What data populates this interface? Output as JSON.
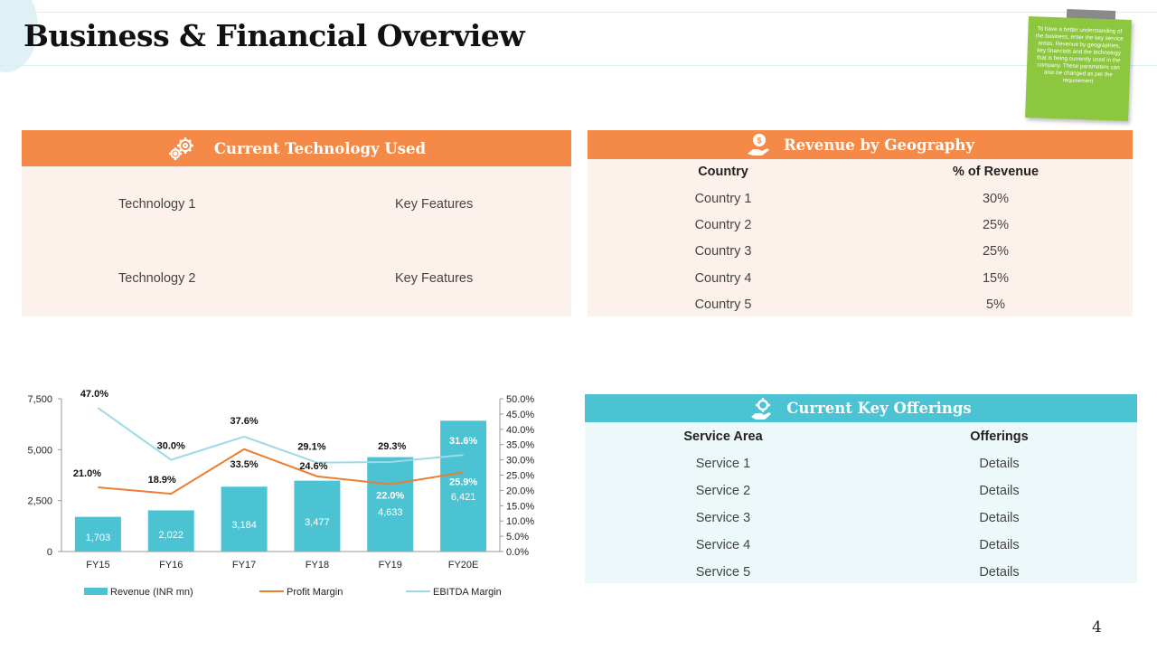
{
  "title": "Business & Financial Overview",
  "note": "To have a better understanding of the business, enter the key service areas, Revenue by geographies, key financials and the technology that is being currently used in the company. These parameters can also be changed as per the requirement",
  "tech": {
    "header": "Current Technology Used",
    "rows": [
      {
        "name": "Technology 1",
        "features": "Key Features"
      },
      {
        "name": "Technology 2",
        "features": "Key Features"
      }
    ]
  },
  "geo": {
    "header": "Revenue by Geography",
    "columns": [
      "Country",
      "% of Revenue"
    ],
    "rows": [
      {
        "country": "Country 1",
        "pct": "30%"
      },
      {
        "country": "Country 2",
        "pct": "25%"
      },
      {
        "country": "Country 3",
        "pct": "25%"
      },
      {
        "country": "Country 4",
        "pct": "15%"
      },
      {
        "country": "Country 5",
        "pct": "5%"
      }
    ]
  },
  "offerings": {
    "header": "Current Key Offerings",
    "columns": [
      "Service Area",
      "Offerings"
    ],
    "rows": [
      {
        "service": "Service 1",
        "offering": "Details"
      },
      {
        "service": "Service 2",
        "offering": "Details"
      },
      {
        "service": "Service 3",
        "offering": "Details"
      },
      {
        "service": "Service 4",
        "offering": "Details"
      },
      {
        "service": "Service 5",
        "offering": "Details"
      }
    ]
  },
  "page_number": "4",
  "colors": {
    "orange": "#f58a48",
    "teal": "#4cc3d2",
    "bar": "#4cc3d2",
    "profit": "#ed7d31",
    "ebitda": "#9dd9e8"
  },
  "chart_data": {
    "type": "bar",
    "categories": [
      "FY15",
      "FY16",
      "FY17",
      "FY18",
      "FY19",
      "FY20E"
    ],
    "series": [
      {
        "name": "Revenue (INR mn)",
        "kind": "bar",
        "axis": "left",
        "values": [
          1703,
          2022,
          3184,
          3477,
          4633,
          6421
        ],
        "labels": [
          "1,703",
          "2,022",
          "3,184",
          "3,477",
          "4,633",
          "6,421"
        ]
      },
      {
        "name": "Profit Margin",
        "kind": "line",
        "axis": "right",
        "values": [
          21.0,
          18.9,
          33.5,
          24.6,
          22.0,
          25.9
        ],
        "labels": [
          "21.0%",
          "18.9%",
          "33.5%",
          "24.6%",
          "22.0%",
          "25.9%"
        ]
      },
      {
        "name": "EBITDA Margin",
        "kind": "line",
        "axis": "right",
        "values": [
          47.0,
          30.0,
          37.6,
          29.1,
          29.3,
          31.6
        ],
        "labels": [
          "47.0%",
          "30.0%",
          "37.6%",
          "29.1%",
          "29.3%",
          "31.6%"
        ]
      }
    ],
    "y_left": {
      "min": 0,
      "max": 7500,
      "ticks": [
        "0",
        "2,500",
        "5,000",
        "7,500"
      ],
      "tick_values": [
        0,
        2500,
        5000,
        7500
      ]
    },
    "y_right": {
      "min": 0,
      "max": 50,
      "ticks": [
        "0.0%",
        "5.0%",
        "10.0%",
        "15.0%",
        "20.0%",
        "25.0%",
        "30.0%",
        "35.0%",
        "40.0%",
        "45.0%",
        "50.0%"
      ],
      "tick_values": [
        0,
        5,
        10,
        15,
        20,
        25,
        30,
        35,
        40,
        45,
        50
      ]
    },
    "legend": "bottom",
    "grid": false
  }
}
